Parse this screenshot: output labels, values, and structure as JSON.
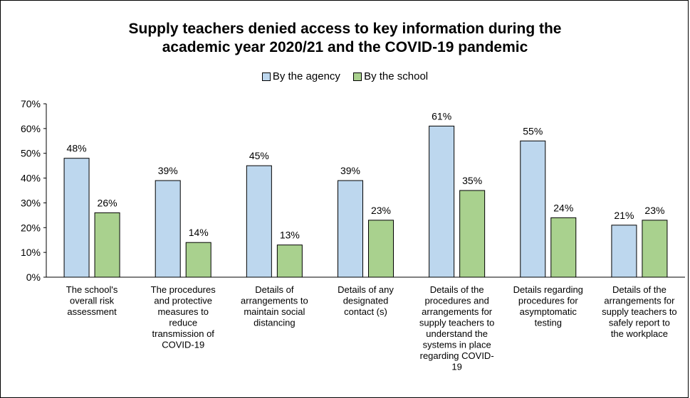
{
  "chart_data": {
    "type": "bar",
    "title": "Supply teachers denied access to key information during the academic year 2020/21 and the COVID-19 pandemic",
    "title_lines": [
      "Supply teachers denied access to key information during the",
      "academic year 2020/21 and the COVID-19 pandemic"
    ],
    "categories": [
      "The school's overall risk assessment",
      "The procedures and protective measures to reduce transmission of COVID-19",
      "Details of arrangements to maintain social distancing",
      "Details of any designated contact (s)",
      "Details of the procedures and arrangements for supply teachers to understand the systems in place regarding COVID-19",
      "Details regarding procedures for asymptomatic testing",
      "Details of the arrangements for supply teachers to safely report to the workplace"
    ],
    "category_lines": [
      [
        "The school's",
        "overall risk",
        "assessment"
      ],
      [
        "The procedures",
        "and protective",
        "measures to",
        "reduce",
        "transmission of",
        "COVID-19"
      ],
      [
        "Details of",
        "arrangements to",
        "maintain social",
        "distancing"
      ],
      [
        "Details of any",
        "designated",
        "contact (s)"
      ],
      [
        "Details of the",
        "procedures and",
        "arrangements for",
        "supply teachers to",
        "understand the",
        "systems in place",
        "regarding COVID-",
        "19"
      ],
      [
        "Details regarding",
        "procedures for",
        "asymptomatic",
        "testing"
      ],
      [
        "Details of the",
        "arrangements for",
        "supply teachers to",
        "safely report to",
        "the workplace"
      ]
    ],
    "series": [
      {
        "name": "By the agency",
        "values": [
          48,
          39,
          45,
          39,
          61,
          55,
          21
        ],
        "labels": [
          "48%",
          "39%",
          "45%",
          "39%",
          "61%",
          "55%",
          "21%"
        ]
      },
      {
        "name": "By the school",
        "values": [
          26,
          14,
          13,
          23,
          35,
          24,
          23
        ],
        "labels": [
          "26%",
          "14%",
          "13%",
          "23%",
          "35%",
          "24%",
          "23%"
        ]
      }
    ],
    "yticks": [
      "0%",
      "10%",
      "20%",
      "30%",
      "40%",
      "50%",
      "60%",
      "70%"
    ],
    "ylim": [
      0,
      70
    ],
    "xlabel": "",
    "ylabel": "",
    "grid": false,
    "legend_position": "top",
    "colors": {
      "agency": "#bdd7ee",
      "school": "#a9d18e",
      "outline": "#000000"
    }
  }
}
